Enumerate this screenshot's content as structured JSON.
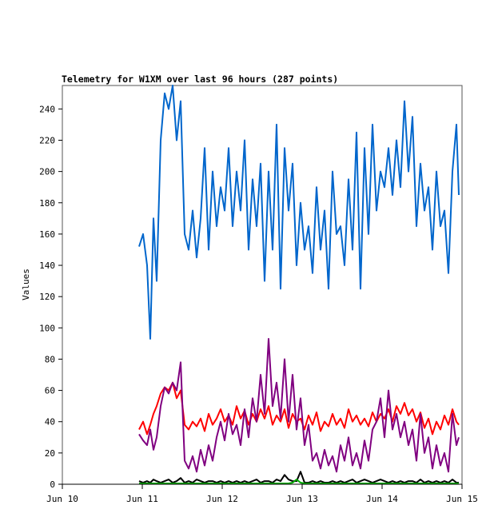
{
  "chart_data": {
    "type": "line",
    "title": "Telemetry for W1XM over last 96 hours (287 points)",
    "xlabel": "",
    "ylabel": "Values",
    "xlim": [
      0,
      5
    ],
    "ylim": [
      0,
      255
    ],
    "x_unit": "days since Jun 10",
    "x_ticks": [
      0,
      1,
      2,
      3,
      4,
      5
    ],
    "x_tick_labels": [
      "Jun 10",
      "Jun 11",
      "Jun 12",
      "Jun 13",
      "Jun 14",
      "Jun 15"
    ],
    "y_ticks": [
      0,
      20,
      40,
      60,
      80,
      100,
      120,
      140,
      160,
      180,
      200,
      220,
      240
    ],
    "grid": false,
    "x": [
      0.96,
      1.01,
      1.06,
      1.1,
      1.14,
      1.18,
      1.23,
      1.28,
      1.33,
      1.38,
      1.43,
      1.48,
      1.53,
      1.58,
      1.63,
      1.68,
      1.73,
      1.78,
      1.83,
      1.88,
      1.93,
      1.98,
      2.03,
      2.08,
      2.13,
      2.18,
      2.23,
      2.28,
      2.33,
      2.38,
      2.43,
      2.48,
      2.53,
      2.58,
      2.63,
      2.68,
      2.73,
      2.78,
      2.83,
      2.88,
      2.93,
      2.98,
      3.03,
      3.08,
      3.13,
      3.18,
      3.23,
      3.28,
      3.33,
      3.38,
      3.43,
      3.48,
      3.53,
      3.58,
      3.63,
      3.68,
      3.73,
      3.78,
      3.83,
      3.88,
      3.93,
      3.98,
      4.03,
      4.08,
      4.13,
      4.18,
      4.23,
      4.28,
      4.33,
      4.38,
      4.43,
      4.48,
      4.53,
      4.58,
      4.63,
      4.68,
      4.73,
      4.78,
      4.83,
      4.88,
      4.93,
      4.96
    ],
    "series": [
      {
        "name": "blue",
        "color": "#0066cc",
        "values": [
          152,
          160,
          140,
          93,
          170,
          130,
          220,
          250,
          240,
          255,
          220,
          245,
          160,
          150,
          175,
          145,
          170,
          215,
          150,
          200,
          165,
          190,
          175,
          215,
          165,
          200,
          175,
          220,
          150,
          195,
          165,
          205,
          130,
          200,
          150,
          230,
          125,
          215,
          175,
          205,
          140,
          180,
          150,
          165,
          135,
          190,
          150,
          175,
          125,
          200,
          160,
          165,
          140,
          195,
          150,
          225,
          125,
          215,
          160,
          230,
          175,
          200,
          190,
          215,
          185,
          220,
          190,
          245,
          200,
          235,
          165,
          205,
          175,
          190,
          150,
          200,
          165,
          175,
          135,
          200,
          230,
          185
        ]
      },
      {
        "name": "red",
        "color": "#ff0000",
        "values": [
          35,
          40,
          32,
          38,
          45,
          50,
          58,
          62,
          60,
          65,
          55,
          60,
          38,
          35,
          40,
          37,
          42,
          34,
          45,
          38,
          42,
          48,
          40,
          44,
          38,
          50,
          42,
          47,
          38,
          45,
          40,
          48,
          42,
          50,
          38,
          44,
          40,
          48,
          36,
          45,
          40,
          42,
          35,
          44,
          38,
          46,
          34,
          40,
          37,
          45,
          38,
          42,
          36,
          48,
          40,
          44,
          38,
          42,
          37,
          46,
          40,
          45,
          42,
          48,
          40,
          50,
          45,
          52,
          44,
          48,
          40,
          46,
          36,
          42,
          32,
          40,
          35,
          44,
          38,
          48,
          40,
          38
        ]
      },
      {
        "name": "purple",
        "color": "#800080",
        "values": [
          32,
          28,
          25,
          35,
          22,
          30,
          50,
          62,
          58,
          65,
          60,
          78,
          15,
          10,
          18,
          8,
          22,
          12,
          25,
          15,
          30,
          40,
          28,
          45,
          32,
          38,
          25,
          48,
          30,
          55,
          40,
          70,
          45,
          93,
          50,
          65,
          42,
          80,
          40,
          70,
          35,
          55,
          25,
          38,
          15,
          20,
          10,
          22,
          12,
          18,
          8,
          25,
          15,
          30,
          12,
          20,
          10,
          28,
          15,
          35,
          40,
          55,
          30,
          60,
          35,
          45,
          30,
          40,
          25,
          35,
          15,
          45,
          20,
          30,
          10,
          25,
          12,
          20,
          8,
          45,
          25,
          30
        ]
      },
      {
        "name": "black",
        "color": "#000000",
        "values": [
          2,
          1,
          2,
          1,
          3,
          2,
          1,
          2,
          3,
          1,
          2,
          4,
          1,
          2,
          1,
          3,
          2,
          1,
          2,
          2,
          1,
          2,
          1,
          2,
          1,
          2,
          1,
          2,
          1,
          2,
          3,
          1,
          2,
          2,
          1,
          3,
          2,
          6,
          3,
          2,
          2,
          8,
          1,
          1,
          2,
          1,
          2,
          1,
          1,
          2,
          1,
          2,
          1,
          2,
          3,
          1,
          2,
          3,
          2,
          1,
          2,
          3,
          2,
          1,
          2,
          1,
          2,
          1,
          2,
          2,
          1,
          3,
          1,
          2,
          1,
          2,
          1,
          2,
          1,
          3,
          1,
          1
        ]
      },
      {
        "name": "green",
        "color": "#00aa00",
        "values": [
          0.5,
          0.5,
          0.5,
          0.5,
          0.5,
          0.5,
          0.5,
          0.5,
          0.5,
          0.5,
          0.5,
          0.5,
          0.5,
          0.5,
          0.5,
          0.5,
          0.5,
          0.5,
          0.5,
          0.5,
          0.5,
          0.5,
          0.5,
          0.5,
          0.5,
          0.5,
          0.5,
          0.5,
          0.5,
          0.5,
          0.5,
          0.5,
          0.5,
          0.5,
          0.5,
          0.5,
          0.5,
          0.5,
          0.5,
          1,
          3,
          1,
          0.5,
          0.5,
          0.5,
          0.5,
          0.5,
          0.5,
          0.5,
          0.5,
          0.5,
          0.5,
          0.5,
          0.5,
          0.5,
          0.5,
          0.5,
          0.5,
          0.5,
          0.5,
          0.5,
          0.5,
          0.5,
          0.5,
          0.5,
          0.5,
          0.5,
          0.5,
          0.5,
          0.5,
          0.5,
          0.5,
          0.5,
          0.5,
          0.5,
          0.5,
          0.5,
          0.5,
          0.5,
          0.5,
          0.5,
          0.5
        ]
      }
    ]
  }
}
